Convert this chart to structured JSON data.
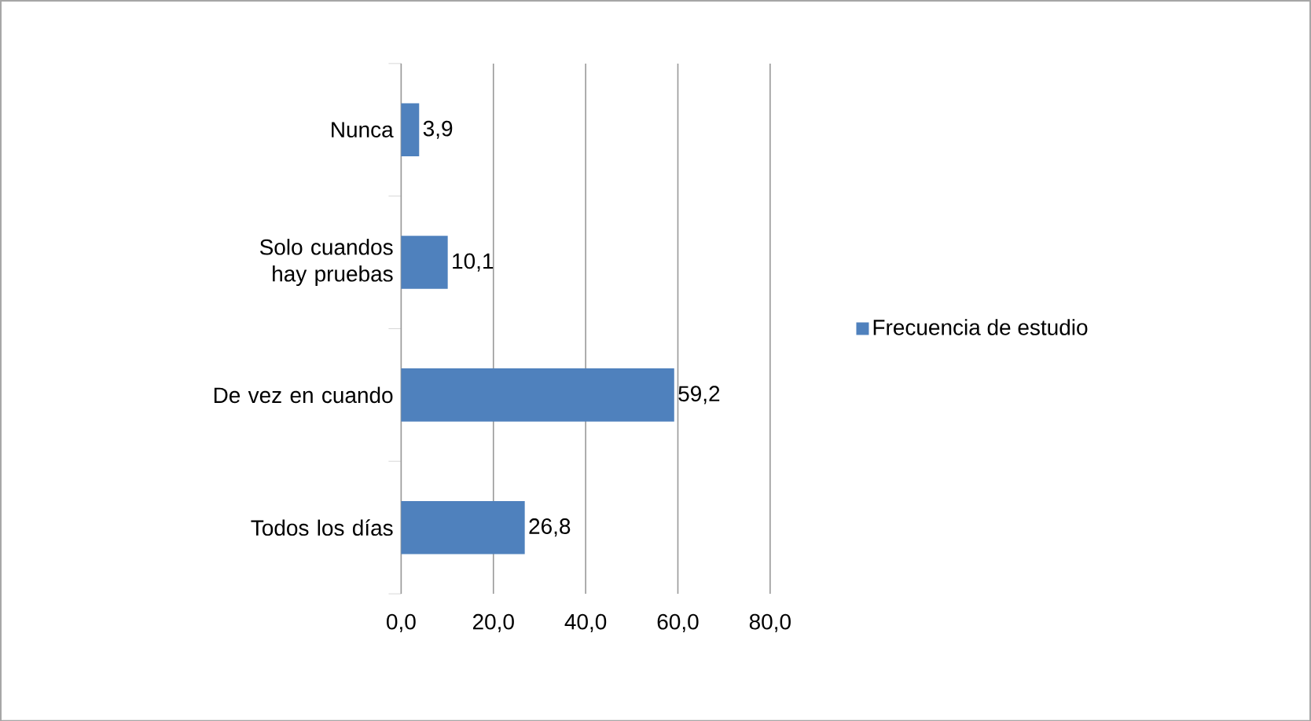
{
  "chart_data": {
    "type": "bar",
    "orientation": "horizontal",
    "categories": [
      "Nunca",
      "Solo cuandos hay pruebas",
      "De vez en cuando",
      "Todos los días"
    ],
    "series": [
      {
        "name": "Frecuencia de estudio",
        "color": "#4f81bd",
        "values": [
          3.9,
          10.1,
          59.2,
          26.8
        ],
        "value_labels": [
          "3,9",
          "10,1",
          "59,2",
          "26,8"
        ]
      }
    ],
    "xlim": [
      0,
      80
    ],
    "xticks": [
      {
        "value": 0,
        "label": "0,0"
      },
      {
        "value": 20,
        "label": "20,0"
      },
      {
        "value": 40,
        "label": "40,0"
      },
      {
        "value": 60,
        "label": "60,0"
      },
      {
        "value": 80,
        "label": "80,0"
      }
    ],
    "grid": "x",
    "legend": "right"
  }
}
